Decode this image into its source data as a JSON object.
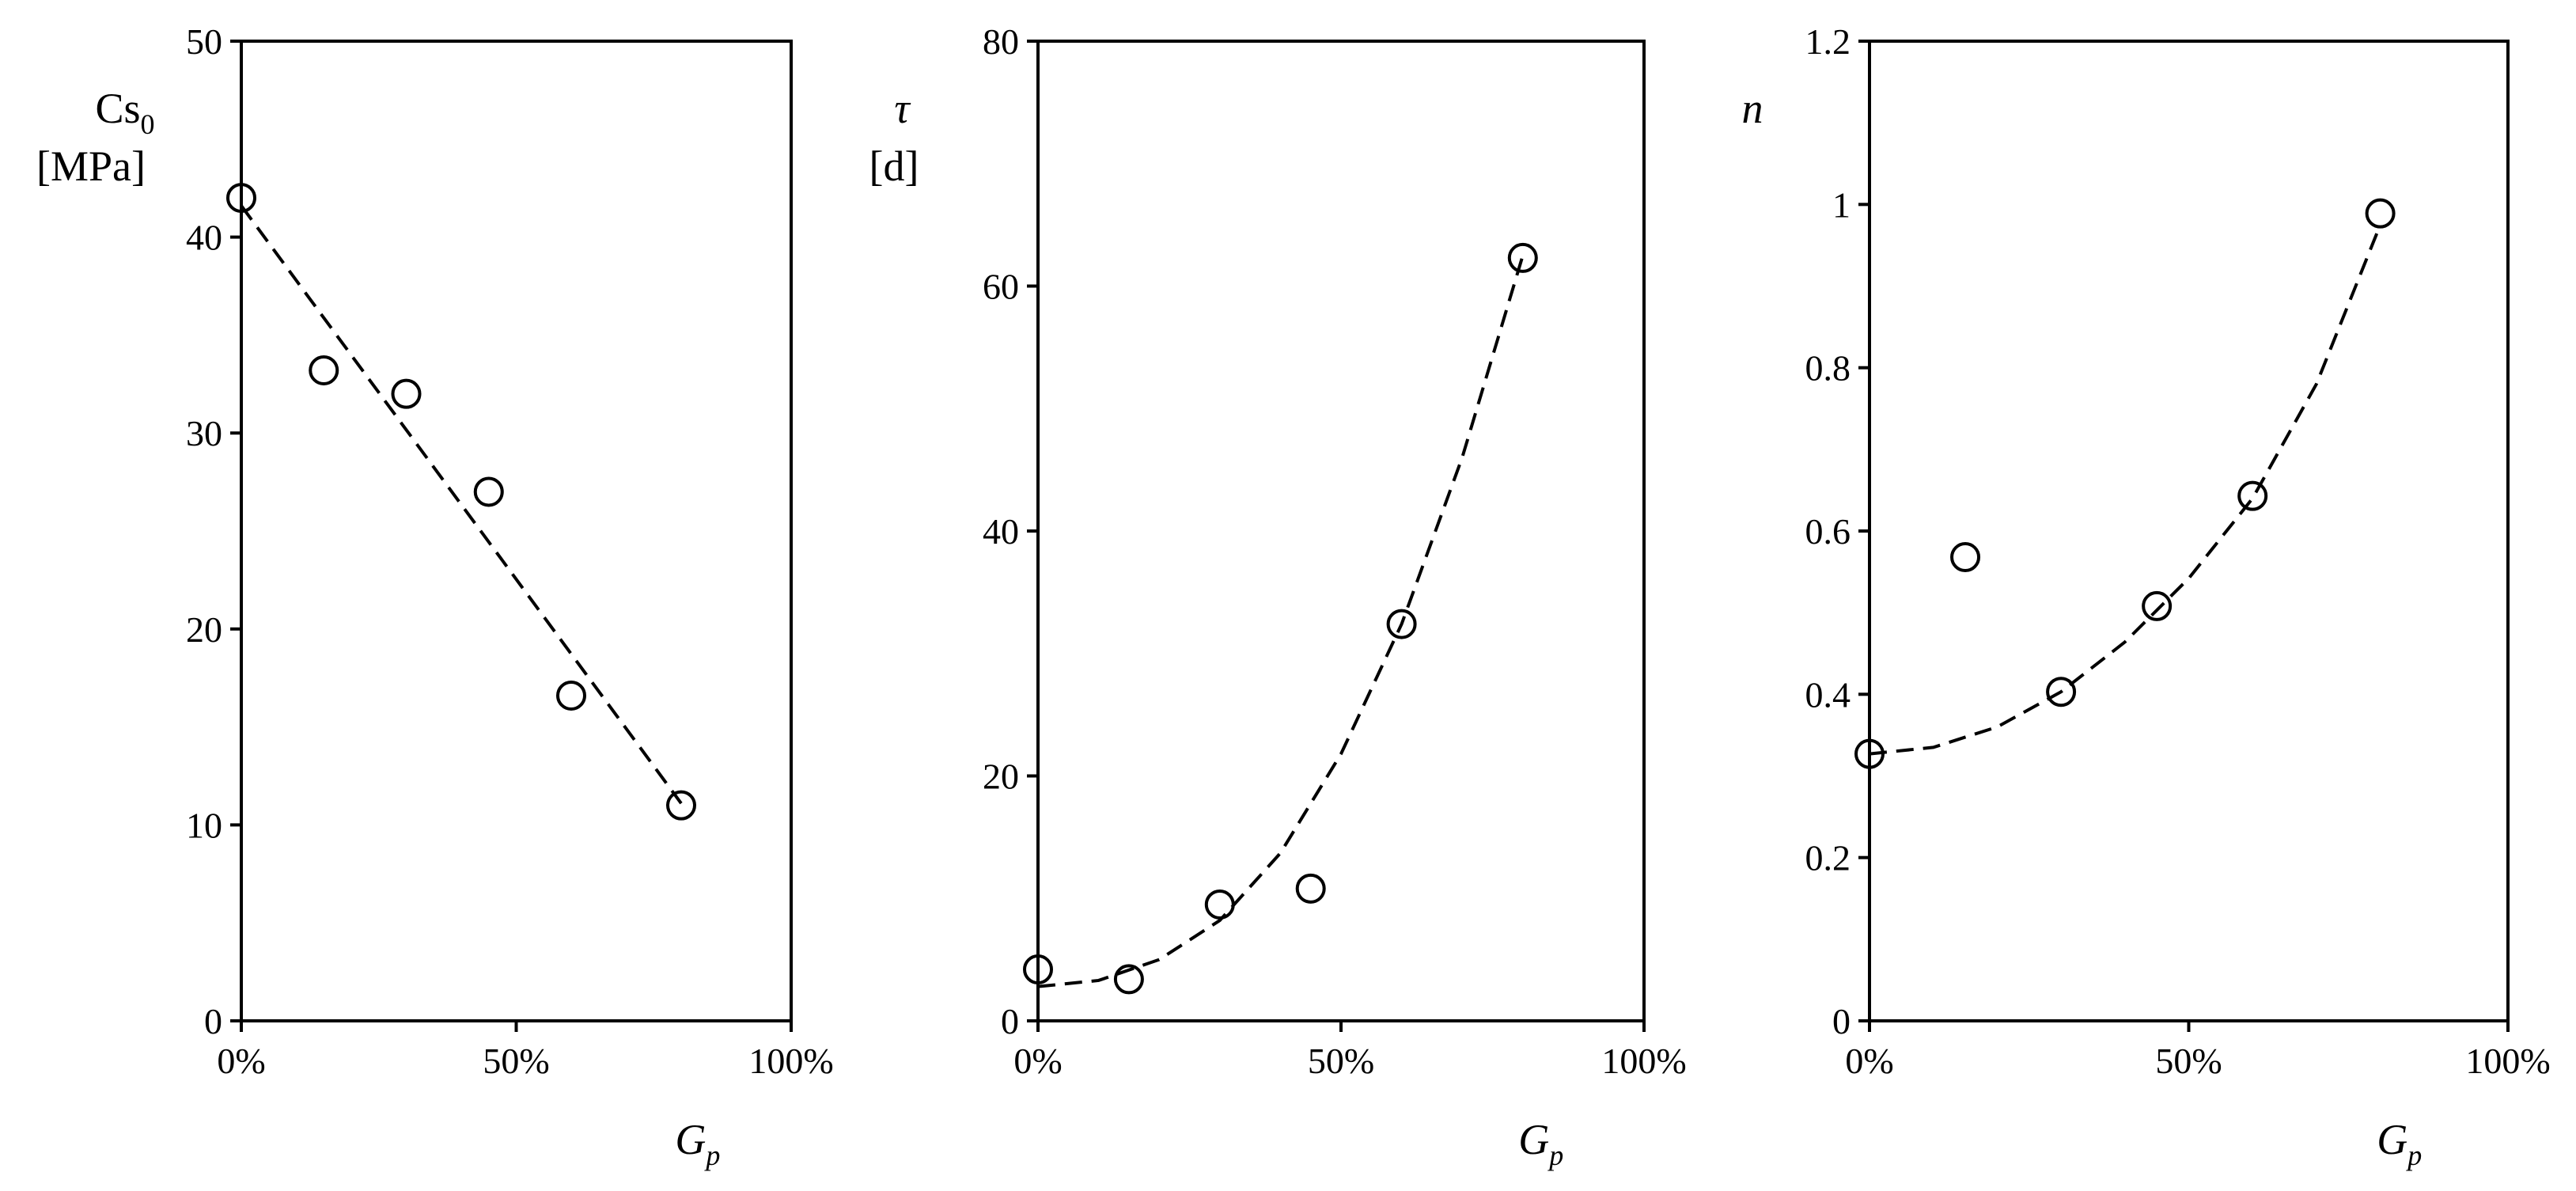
{
  "chart_data": [
    {
      "type": "scatter",
      "title": "",
      "xlabel": "G",
      "xlabel_sub": "p",
      "ylabel_main": "Cs",
      "ylabel_sub": "0",
      "ylabel_unit": "[MPa]",
      "xlim": [
        0,
        1
      ],
      "ylim": [
        0,
        50
      ],
      "x_ticks": [
        0,
        0.5,
        1
      ],
      "x_tick_labels": [
        "0%",
        "50%",
        "100%"
      ],
      "y_ticks": [
        0,
        10,
        20,
        30,
        40,
        50
      ],
      "y_tick_labels": [
        "0",
        "10",
        "20",
        "30",
        "40",
        "50"
      ],
      "grid": false,
      "series": [
        {
          "marker": "open-circle",
          "x": [
            0,
            0.15,
            0.3,
            0.45,
            0.6,
            0.8
          ],
          "y": [
            42,
            33.2,
            32,
            27,
            16.6,
            11
          ]
        }
      ],
      "trend": {
        "style": "dashed",
        "x": [
          0,
          0.8
        ],
        "y": [
          41.6,
          11.1
        ]
      }
    },
    {
      "type": "scatter",
      "title": "",
      "xlabel": "G",
      "xlabel_sub": "p",
      "ylabel_main": "τ",
      "ylabel_sub": "",
      "ylabel_unit": "[d]",
      "xlim": [
        0,
        1
      ],
      "ylim": [
        0,
        80
      ],
      "x_ticks": [
        0,
        0.5,
        1
      ],
      "x_tick_labels": [
        "0%",
        "50%",
        "100%"
      ],
      "y_ticks": [
        0,
        20,
        40,
        60,
        80
      ],
      "y_tick_labels": [
        "0",
        "20",
        "40",
        "60",
        "80"
      ],
      "grid": false,
      "series": [
        {
          "marker": "open-circle",
          "x": [
            0,
            0.15,
            0.3,
            0.45,
            0.6,
            0.8
          ],
          "y": [
            4.2,
            3.4,
            9.5,
            10.8,
            32.4,
            62.3
          ]
        }
      ],
      "trend": {
        "style": "dashed",
        "x": [
          0,
          0.1,
          0.2,
          0.3,
          0.4,
          0.5,
          0.6,
          0.7,
          0.8
        ],
        "y": [
          2.8,
          3.3,
          5.0,
          8.2,
          13.7,
          21.8,
          32.4,
          46.0,
          62.5
        ]
      }
    },
    {
      "type": "scatter",
      "title": "",
      "xlabel": "G",
      "xlabel_sub": "p",
      "ylabel_main": "n",
      "ylabel_sub": "",
      "ylabel_unit": "",
      "xlim": [
        0,
        1
      ],
      "ylim": [
        0,
        1.2
      ],
      "x_ticks": [
        0,
        0.5,
        1
      ],
      "x_tick_labels": [
        "0%",
        "50%",
        "100%"
      ],
      "y_ticks": [
        0,
        0.2,
        0.4,
        0.6,
        0.8,
        1.0,
        1.2
      ],
      "y_tick_labels": [
        "0",
        "0.2",
        "0.4",
        "0.6",
        "0.8",
        "1",
        "1.2"
      ],
      "grid": false,
      "series": [
        {
          "marker": "open-circle",
          "x": [
            0,
            0.15,
            0.3,
            0.45,
            0.6,
            0.8
          ],
          "y": [
            0.327,
            0.568,
            0.403,
            0.508,
            0.643,
            0.989
          ]
        }
      ],
      "trend": {
        "style": "dashed",
        "x": [
          0,
          0.1,
          0.2,
          0.3,
          0.4,
          0.5,
          0.6,
          0.7,
          0.8
        ],
        "y": [
          0.327,
          0.335,
          0.36,
          0.403,
          0.464,
          0.542,
          0.64,
          0.78,
          0.975
        ]
      }
    }
  ]
}
